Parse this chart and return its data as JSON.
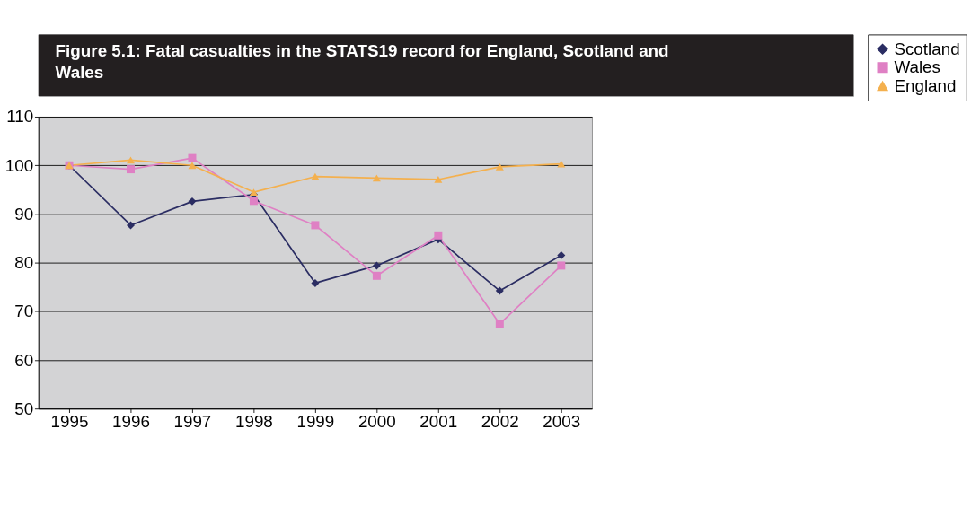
{
  "chart_data": {
    "type": "line",
    "title": "Figure 5.1:  Fatal casualties in the STATS19 record for England, Scotland and Wales",
    "categories": [
      "1995",
      "1996",
      "1997",
      "1998",
      "1999",
      "2000",
      "2001",
      "2002",
      "2003"
    ],
    "series": [
      {
        "name": "Scotland",
        "color": "#2b2d63",
        "marker": "diamond",
        "values": [
          100,
          87.7,
          92.6,
          94.0,
          75.8,
          79.4,
          84.8,
          74.2,
          81.5
        ]
      },
      {
        "name": "Wales",
        "color": "#df80c4",
        "marker": "square",
        "values": [
          100,
          99.2,
          101.5,
          92.7,
          87.7,
          77.3,
          85.6,
          67.4,
          79.4
        ]
      },
      {
        "name": "England",
        "color": "#f4b04e",
        "marker": "triangle",
        "values": [
          100,
          101.1,
          100,
          94.5,
          97.7,
          97.4,
          97.1,
          99.7,
          100.3
        ]
      }
    ],
    "ylim": [
      50,
      110
    ],
    "yticks": [
      50,
      60,
      70,
      80,
      90,
      100,
      110
    ],
    "grid": "y",
    "legend": "right",
    "line_style": "solid"
  }
}
